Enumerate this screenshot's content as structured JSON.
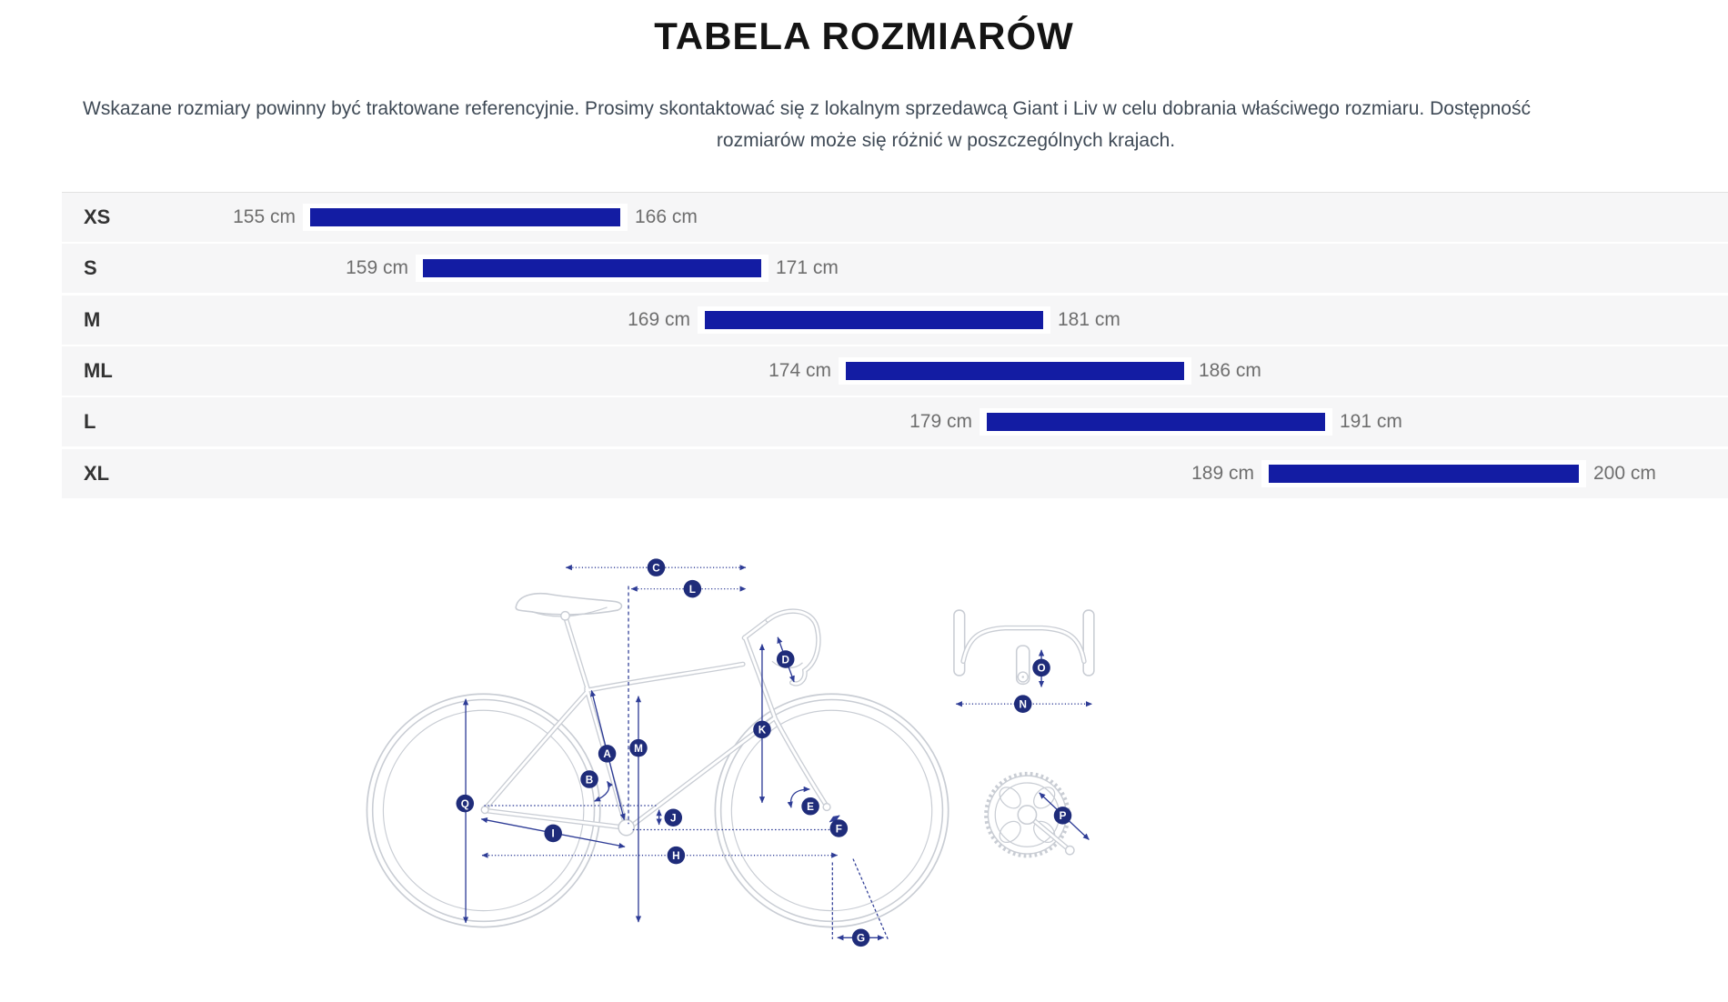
{
  "title": "TABELA ROZMIARÓW",
  "description": {
    "line1": "Wskazane rozmiary powinny być traktowane referencyjnie. Prosimy skontaktować się z lokalnym sprzedawcą Giant i Liv w celu dobrania właściwego rozmiaru. Dostępność",
    "line2": "rozmiarów może się różnić w poszczególnych krajach."
  },
  "chart_data": {
    "type": "bar",
    "subtype": "horizontal-range",
    "title": "TABELA ROZMIARÓW",
    "categories": [
      "XS",
      "S",
      "M",
      "ML",
      "L",
      "XL"
    ],
    "ranges_cm": [
      [
        155,
        166
      ],
      [
        159,
        171
      ],
      [
        169,
        181
      ],
      [
        174,
        186
      ],
      [
        179,
        191
      ],
      [
        189,
        200
      ]
    ],
    "unit": "cm",
    "xlim": [
      144,
      200
    ],
    "grid": false,
    "bar_color": "#131ca3"
  },
  "diagram": {
    "name": "bike-geometry-diagram",
    "labels": [
      "A",
      "B",
      "C",
      "D",
      "E",
      "F",
      "G",
      "H",
      "I",
      "J",
      "K",
      "L",
      "M",
      "N",
      "O",
      "P",
      "Q"
    ]
  },
  "colors": {
    "bar": "#131ca3",
    "badge": "#1f2c7a",
    "arrow": "#2e3c96",
    "lineart": "#c9cdd4",
    "row_bg": "#f6f6f7"
  }
}
